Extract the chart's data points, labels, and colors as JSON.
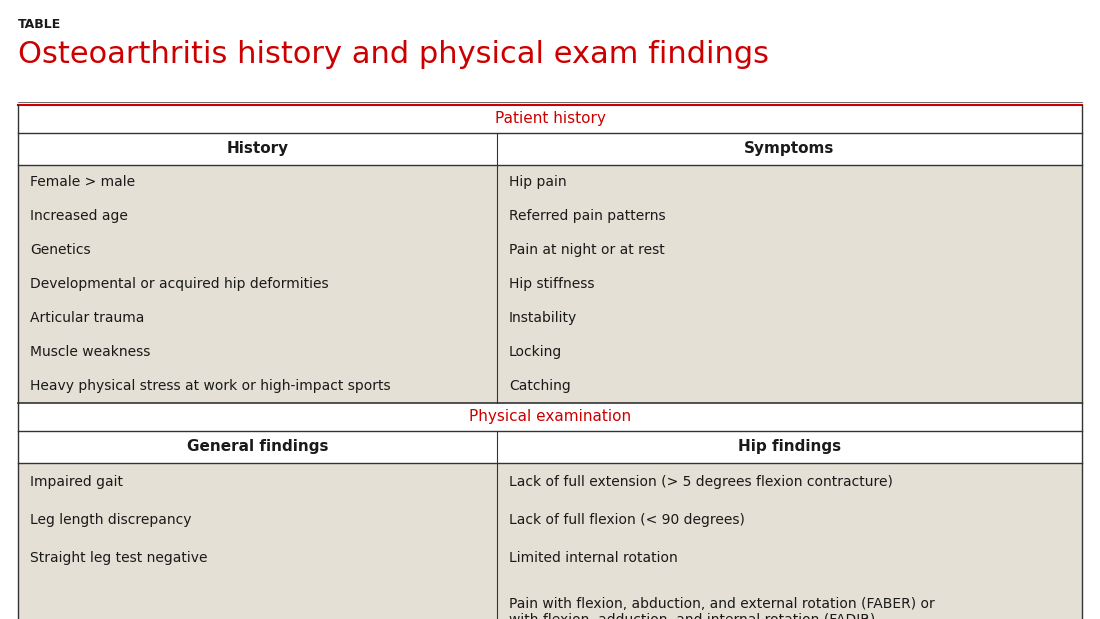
{
  "title_label": "TABLE",
  "title": "Osteoarthritis history and physical exam findings",
  "bg_color": "#ffffff",
  "cell_bg_color": "#e5e0d5",
  "header_bg_color": "#ffffff",
  "section_label_color": "#cc0000",
  "title_color": "#cc0000",
  "title_label_color": "#1a1a1a",
  "border_color": "#333333",
  "text_color": "#1a1a1a",
  "section1_label": "Patient history",
  "section2_label": "Physical examination",
  "col1_header_s1": "History",
  "col2_header_s1": "Symptoms",
  "col1_header_s2": "General findings",
  "col2_header_s2": "Hip findings",
  "section1_col1": [
    "Female > male",
    "Increased age",
    "Genetics",
    "Developmental or acquired hip deformities",
    "Articular trauma",
    "Muscle weakness",
    "Heavy physical stress at work or high-impact sports"
  ],
  "section1_col2": [
    "Hip pain",
    "Referred pain patterns",
    "Pain at night or at rest",
    "Hip stiffness",
    "Instability",
    "Locking",
    "Catching"
  ],
  "section2_col1": [
    "Impaired gait",
    "Leg length discrepancy",
    "Straight leg test negative",
    ""
  ],
  "section2_col2": [
    "Lack of full extension (> 5 degrees flexion contracture)",
    "Lack of full flexion (< 90 degrees)",
    "Limited internal rotation",
    "Pain with flexion, abduction, and external rotation (FABER) or\nwith flexion, adduction, and internal rotation (FADIR)"
  ]
}
